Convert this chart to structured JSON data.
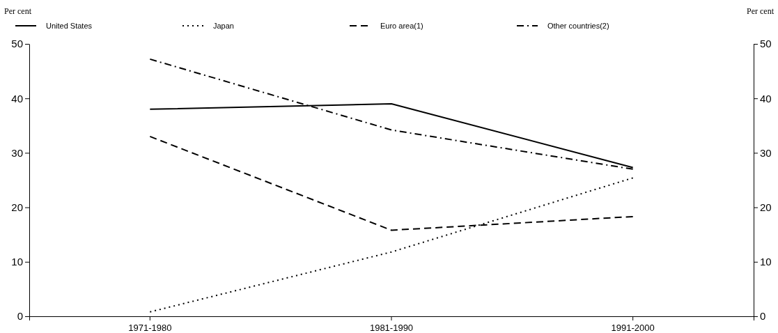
{
  "chart_data": {
    "type": "line",
    "ylabel": "Per cent",
    "y2label": "Per cent",
    "categories": [
      "1971-1980",
      "1981-1990",
      "1991-2000"
    ],
    "series": [
      {
        "name": "United States",
        "color": "#000000",
        "line_style": "solid",
        "values": [
          38,
          39,
          27.3
        ]
      },
      {
        "name": "Japan",
        "color": "#000000",
        "line_style": "dotted",
        "values": [
          0.8,
          11.8,
          25.4
        ]
      },
      {
        "name": "Euro area(1)",
        "color": "#000000",
        "line_style": "dashed",
        "values": [
          33,
          15.8,
          18.3
        ]
      },
      {
        "name": "Other countries(2)",
        "color": "#000000",
        "line_style": "dashdot",
        "values": [
          47.2,
          34.2,
          27.0
        ]
      }
    ],
    "ylim": [
      0,
      50
    ],
    "yticks": [
      0,
      10,
      20,
      30,
      40,
      50
    ],
    "y2lim": [
      0,
      50
    ],
    "y2ticks": [
      0,
      10,
      20,
      30,
      40,
      50
    ],
    "grid": false,
    "legend": "top left",
    "marker": "none"
  }
}
